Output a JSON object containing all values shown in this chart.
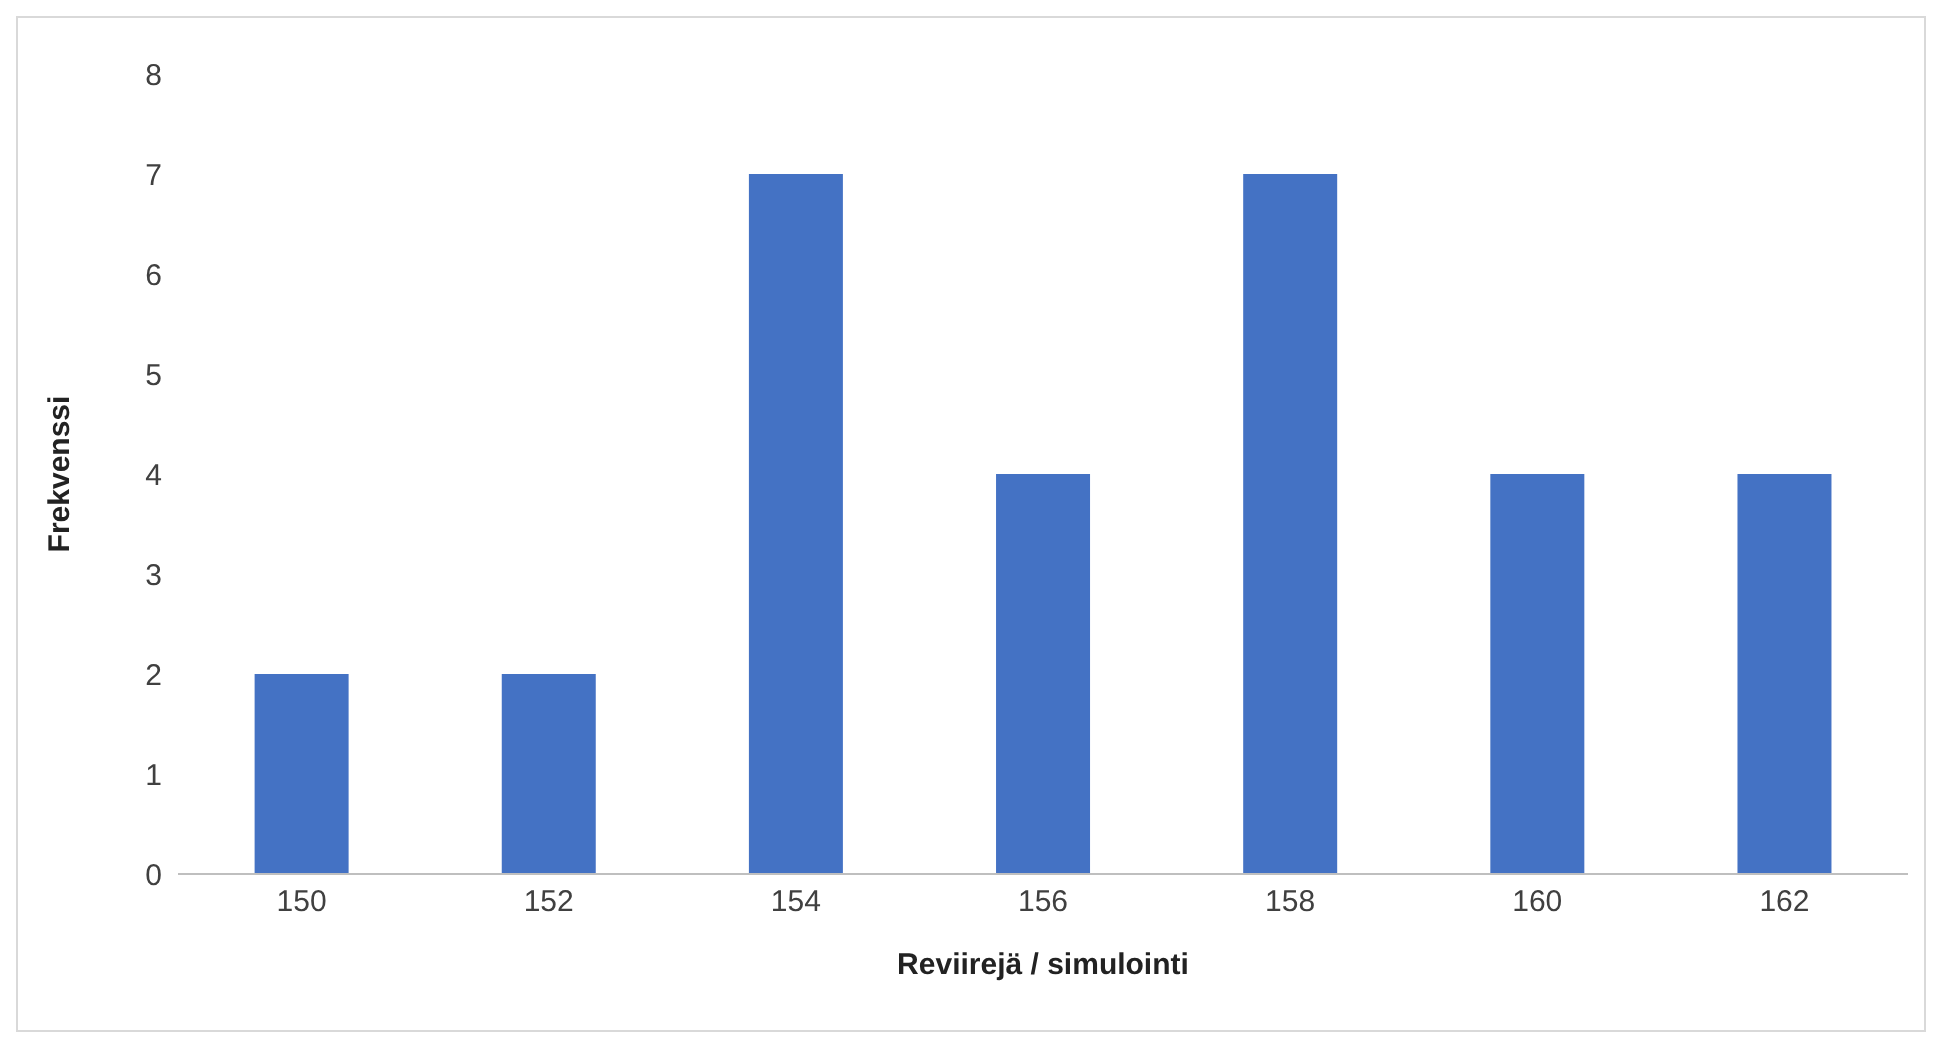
{
  "chart_data": {
    "type": "bar",
    "xlabel": "Reviirejä / simulointi",
    "ylabel": "Frekvenssi",
    "categories": [
      "150",
      "152",
      "154",
      "156",
      "158",
      "160",
      "162"
    ],
    "values": [
      2,
      2,
      7,
      4,
      7,
      4,
      4
    ],
    "color": "#4472c4",
    "ylim": [
      0,
      8
    ],
    "yticks": [
      0,
      1,
      2,
      3,
      4,
      5,
      6,
      7,
      8
    ]
  }
}
